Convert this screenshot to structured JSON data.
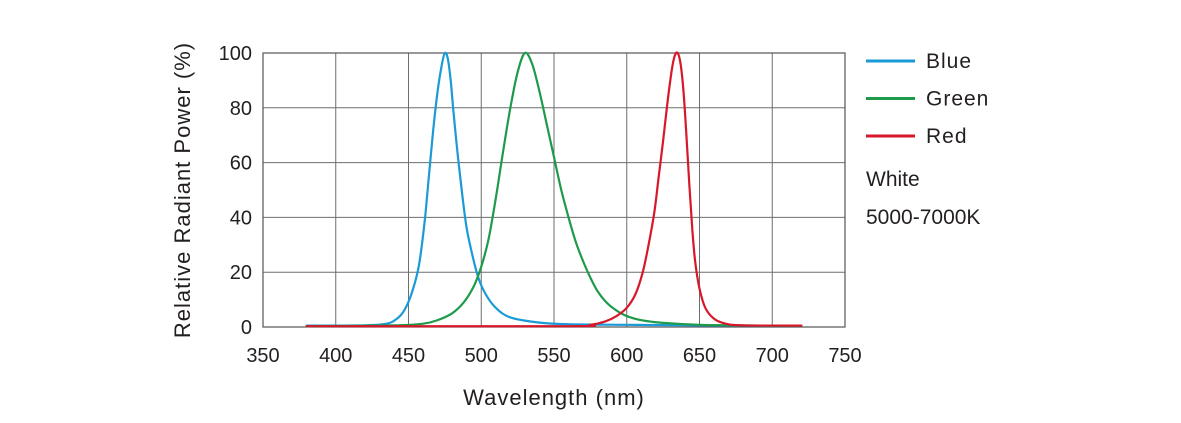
{
  "chart_data": {
    "type": "line",
    "xlabel": "Wavelength (nm)",
    "ylabel": "Relative Radiant Power (%)",
    "xlim": [
      350,
      750
    ],
    "ylim": [
      0,
      100
    ],
    "x_ticks": [
      350,
      400,
      450,
      500,
      550,
      600,
      650,
      700,
      750
    ],
    "y_ticks": [
      0,
      20,
      40,
      60,
      80,
      100
    ],
    "grid": true,
    "legend_position": "right",
    "series": [
      {
        "name": "Blue",
        "color": "#1a9ad6",
        "points": [
          [
            380,
            0.5
          ],
          [
            420,
            0.6
          ],
          [
            435,
            1.2
          ],
          [
            442,
            3
          ],
          [
            447,
            6
          ],
          [
            452,
            12
          ],
          [
            457,
            22
          ],
          [
            461,
            38
          ],
          [
            464,
            55
          ],
          [
            467,
            72
          ],
          [
            470,
            86
          ],
          [
            473,
            96
          ],
          [
            475,
            100
          ],
          [
            477,
            98
          ],
          [
            479,
            90
          ],
          [
            481,
            78
          ],
          [
            484,
            62
          ],
          [
            487,
            48
          ],
          [
            490,
            36
          ],
          [
            494,
            26
          ],
          [
            498,
            18
          ],
          [
            503,
            12
          ],
          [
            510,
            7
          ],
          [
            520,
            3.5
          ],
          [
            540,
            1.6
          ],
          [
            560,
            1
          ],
          [
            600,
            0.8
          ],
          [
            650,
            0.6
          ],
          [
            700,
            0.5
          ],
          [
            720,
            0.5
          ]
        ]
      },
      {
        "name": "Green",
        "color": "#1e9a4b",
        "points": [
          [
            380,
            0.3
          ],
          [
            440,
            0.6
          ],
          [
            460,
            1.2
          ],
          [
            470,
            2.5
          ],
          [
            480,
            5
          ],
          [
            488,
            9
          ],
          [
            495,
            15
          ],
          [
            500,
            22
          ],
          [
            505,
            32
          ],
          [
            510,
            47
          ],
          [
            515,
            64
          ],
          [
            520,
            80
          ],
          [
            525,
            93
          ],
          [
            530,
            100
          ],
          [
            535,
            96
          ],
          [
            540,
            86
          ],
          [
            545,
            74
          ],
          [
            550,
            62
          ],
          [
            555,
            50
          ],
          [
            560,
            40
          ],
          [
            565,
            31
          ],
          [
            570,
            24
          ],
          [
            575,
            18
          ],
          [
            580,
            13
          ],
          [
            586,
            9
          ],
          [
            593,
            6
          ],
          [
            600,
            4
          ],
          [
            610,
            2.5
          ],
          [
            625,
            1.5
          ],
          [
            650,
            0.8
          ],
          [
            700,
            0.5
          ],
          [
            720,
            0.5
          ]
        ]
      },
      {
        "name": "Red",
        "color": "#d7182a",
        "points": [
          [
            380,
            0.3
          ],
          [
            560,
            0.3
          ],
          [
            575,
            0.8
          ],
          [
            585,
            2
          ],
          [
            593,
            4
          ],
          [
            600,
            7
          ],
          [
            606,
            12
          ],
          [
            611,
            20
          ],
          [
            615,
            30
          ],
          [
            619,
            42
          ],
          [
            622,
            55
          ],
          [
            625,
            68
          ],
          [
            628,
            82
          ],
          [
            631,
            94
          ],
          [
            633,
            99
          ],
          [
            635,
            100
          ],
          [
            637,
            96
          ],
          [
            639,
            86
          ],
          [
            641,
            70
          ],
          [
            643,
            52
          ],
          [
            645,
            36
          ],
          [
            647,
            24
          ],
          [
            650,
            14
          ],
          [
            654,
            7
          ],
          [
            660,
            3
          ],
          [
            668,
            1.2
          ],
          [
            680,
            0.6
          ],
          [
            720,
            0.5
          ]
        ]
      }
    ],
    "annotations": [
      "White",
      "5000-7000K"
    ]
  }
}
